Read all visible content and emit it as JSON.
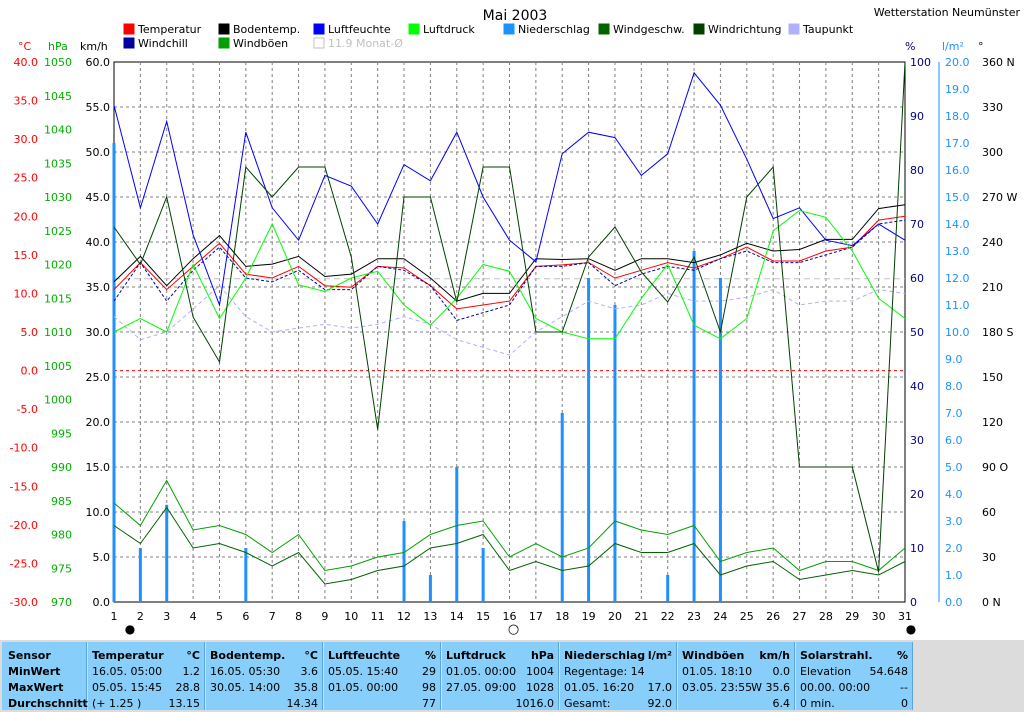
{
  "title": "Mai 2003",
  "station": "Wetterstation Neumünster",
  "colors": {
    "temp": "#ff0000",
    "windchill": "#0000a0",
    "boden": "#000000",
    "boeen": "#00a000",
    "luftfeuchte": "#0000ff",
    "luftdruck": "#00ff00",
    "niederschlag": "#1e90ff",
    "windgeschw": "#006400",
    "windrichtung": "#004000",
    "taupunkt": "#b0b0ff",
    "monat": "#c0c0c0",
    "zero_line": "#ff0000",
    "axis_celsius": "#ff0000",
    "axis_hpa": "#00b000",
    "axis_kmh": "#000000",
    "axis_percent": "#000080",
    "axis_rain": "#1e90ff",
    "axis_deg": "#000000"
  },
  "legend": [
    {
      "label": "Temperatur",
      "color": "#ff0000"
    },
    {
      "label": "Bodentemp.",
      "color": "#000000"
    },
    {
      "label": "Luftfeuchte",
      "color": "#0000ff"
    },
    {
      "label": "Luftdruck",
      "color": "#00ff00"
    },
    {
      "label": "Niederschlag",
      "color": "#1e90ff"
    },
    {
      "label": "Windgeschw.",
      "color": "#006400"
    },
    {
      "label": "Windrichtung",
      "color": "#004000"
    },
    {
      "label": "Taupunkt",
      "color": "#b0b0ff"
    },
    {
      "label": "Windchill",
      "color": "#0000a0"
    },
    {
      "label": "Windböen",
      "color": "#00a000"
    },
    {
      "label": "11.9 Monat-Ø",
      "color": "#ffffff"
    }
  ],
  "axis_units": {
    "celsius": "°C",
    "hpa": "hPa",
    "kmh": "km/h",
    "percent": "%",
    "rain": "l/m²",
    "deg": "°"
  },
  "chart_data": {
    "type": "line",
    "x": [
      1,
      2,
      3,
      4,
      5,
      6,
      7,
      8,
      9,
      10,
      11,
      12,
      13,
      14,
      15,
      16,
      17,
      18,
      19,
      20,
      21,
      22,
      23,
      24,
      25,
      26,
      27,
      28,
      29,
      30,
      31
    ],
    "axes": {
      "celsius": {
        "ylim": [
          -30,
          40
        ],
        "ticks": [
          "40.0",
          "35.0",
          "30.0",
          "25.0",
          "20.0",
          "15.0",
          "10.0",
          "5.0",
          "0.0",
          "-5.0",
          "-10.0",
          "-15.0",
          "-20.0",
          "-25.0",
          "-30.0"
        ]
      },
      "hpa": {
        "ylim": [
          970,
          1050
        ],
        "ticks": [
          "1050",
          "1045",
          "1040",
          "1035",
          "1030",
          "1025",
          "1020",
          "1015",
          "1010",
          "1005",
          "1000",
          "995",
          "990",
          "985",
          "980",
          "975",
          "970"
        ]
      },
      "kmh": {
        "ylim": [
          0,
          60
        ],
        "ticks": [
          "60.0",
          "55.0",
          "50.0",
          "45.0",
          "40.0",
          "35.0",
          "30.0",
          "25.0",
          "20.0",
          "15.0",
          "10.0",
          "5.0",
          "0.0"
        ]
      },
      "percent": {
        "ylim": [
          0,
          100
        ],
        "ticks": [
          "100",
          "90",
          "80",
          "70",
          "60",
          "50",
          "40",
          "30",
          "20",
          "10",
          "0"
        ]
      },
      "rain": {
        "ylim": [
          0,
          20
        ],
        "ticks": [
          "20.0",
          "19.0",
          "18.0",
          "17.0",
          "16.0",
          "15.0",
          "14.0",
          "13.0",
          "12.0",
          "11.0",
          "10.0",
          "9.0",
          "8.0",
          "7.0",
          "6.0",
          "5.0",
          "4.0",
          "3.0",
          "2.0",
          "1.0",
          "0.0"
        ]
      },
      "deg": {
        "ylim": [
          0,
          360
        ],
        "ticks": [
          "360 N",
          "330",
          "300",
          "270 W",
          "240",
          "210",
          "180 S",
          "150",
          "120",
          "90 O",
          "60",
          "30",
          "0 N"
        ]
      }
    },
    "series": [
      {
        "name": "Temperatur",
        "axis": "celsius",
        "values": [
          10.5,
          14,
          10.5,
          13.5,
          16.5,
          12.5,
          12,
          13.5,
          11,
          10.8,
          13.5,
          13.3,
          11,
          8,
          8.5,
          9,
          13.5,
          13.7,
          14,
          12,
          13,
          14,
          13.3,
          14.5,
          16,
          14.2,
          14.2,
          15.5,
          16,
          19.5,
          20
        ]
      },
      {
        "name": "Windchill",
        "axis": "celsius",
        "values": [
          9,
          14,
          9,
          13,
          16,
          12,
          11.5,
          13,
          10.5,
          10.5,
          13.5,
          13,
          11,
          6.5,
          7.5,
          8.5,
          13.5,
          13.5,
          14,
          11,
          12.5,
          13.5,
          13,
          14.5,
          15.5,
          14,
          14,
          15,
          16,
          19,
          19.5
        ]
      },
      {
        "name": "Bodentemp.",
        "axis": "celsius",
        "values": [
          11.5,
          14.8,
          11,
          14.5,
          17.5,
          13.5,
          13.8,
          14.8,
          12.2,
          12.5,
          14.5,
          14.5,
          12,
          9,
          10,
          10,
          14.5,
          14.4,
          14.5,
          13,
          14.5,
          14.5,
          14,
          15,
          16.5,
          15.5,
          15.7,
          17,
          17,
          21,
          21.5
        ]
      },
      {
        "name": "Taupunkt",
        "axis": "celsius",
        "values": [
          7,
          4,
          5,
          8,
          11,
          7,
          5,
          5.5,
          6,
          5.5,
          6,
          7,
          6,
          4,
          3,
          2,
          5,
          7,
          9,
          8,
          8.5,
          10,
          9,
          9,
          9.5,
          10.5,
          8.5,
          9,
          9,
          10.5,
          10
        ]
      },
      {
        "name": "Luftfeuchte",
        "axis": "percent",
        "values": [
          92,
          73,
          89,
          68,
          55,
          87,
          73,
          67,
          79,
          77,
          70,
          81,
          78,
          87,
          75,
          67,
          63,
          83,
          87,
          86,
          79,
          83,
          98,
          92,
          82,
          71,
          73,
          67,
          66,
          70,
          67
        ]
      },
      {
        "name": "Luftdruck",
        "axis": "hpa",
        "values": [
          1010,
          1012,
          1010,
          1020,
          1012,
          1018,
          1026,
          1017,
          1016,
          1018,
          1019,
          1014,
          1011,
          1015,
          1020,
          1019,
          1012,
          1010,
          1009,
          1009,
          1015,
          1020,
          1011,
          1009,
          1012,
          1025,
          1028,
          1027,
          1022,
          1015,
          1012
        ]
      },
      {
        "name": "Windgeschw.",
        "axis": "kmh",
        "values": [
          8.5,
          6.5,
          10.5,
          6,
          6.5,
          5.5,
          4,
          5.5,
          2,
          2.5,
          3.5,
          4,
          6,
          6.5,
          7.5,
          3.5,
          4.5,
          3.5,
          4,
          6.5,
          5.5,
          5.5,
          6.5,
          3,
          4,
          4.5,
          2.5,
          3,
          3.5,
          3,
          4.5
        ]
      },
      {
        "name": "Windböen",
        "axis": "kmh",
        "values": [
          11,
          8.5,
          13.5,
          8,
          8.5,
          7.5,
          5.5,
          7.5,
          3.5,
          4,
          5,
          5.5,
          7.5,
          8.5,
          9,
          5,
          6.5,
          5,
          6,
          9,
          8,
          7.5,
          8.5,
          4.5,
          5.5,
          6,
          3.5,
          4.5,
          4.5,
          3.5,
          6
        ]
      },
      {
        "name": "Windrichtung",
        "axis": "deg",
        "values": [
          250,
          225,
          270,
          190,
          160,
          290,
          270,
          290,
          290,
          230,
          115,
          270,
          270,
          200,
          290,
          290,
          180,
          180,
          230,
          250,
          220,
          200,
          230,
          180,
          270,
          290,
          90,
          90,
          90,
          20,
          360
        ]
      }
    ],
    "niederschlag": {
      "name": "Niederschlag",
      "axis": "rain",
      "values": [
        17,
        2,
        3.6,
        0,
        0,
        2,
        0,
        0,
        0,
        0,
        0,
        3,
        1,
        5,
        2,
        0,
        0,
        7,
        12,
        11,
        0,
        1,
        13,
        12,
        0,
        0,
        0,
        0,
        0,
        0,
        0
      ]
    },
    "monat_mittel": {
      "name": "11.9 Monat-Ø",
      "axis": "celsius",
      "value": 11.9
    },
    "moon_phases": {
      "full": [
        1,
        31
      ],
      "new": [
        16
      ],
      "markers": [
        "●",
        "○"
      ]
    }
  },
  "stats": {
    "sensor": {
      "header": "Sensor",
      "rows": [
        "MinWert",
        "MaxWert",
        "Durchschnitt"
      ]
    },
    "blocks": [
      {
        "title": "Temperatur",
        "unit": "°C",
        "rows": [
          [
            "16.05.  05:00",
            "1.2"
          ],
          [
            "05.05.  15:45",
            "28.8"
          ],
          [
            "(+ 1.25 )",
            "13.15"
          ]
        ]
      },
      {
        "title": "Bodentemp.",
        "unit": "°C",
        "rows": [
          [
            "16.05.  05:30",
            "3.6"
          ],
          [
            "30.05.  14:00",
            "35.8"
          ],
          [
            "",
            "14.34"
          ]
        ]
      },
      {
        "title": "Luftfeuchte",
        "unit": "%",
        "rows": [
          [
            "05.05.  15:40",
            "29"
          ],
          [
            "01.05.  00:00",
            "98"
          ],
          [
            "",
            "77"
          ]
        ]
      },
      {
        "title": "Luftdruck",
        "unit": "hPa",
        "rows": [
          [
            "01.05.  00:00",
            "1004"
          ],
          [
            "27.05.  09:00",
            "1028"
          ],
          [
            "",
            "1016.0"
          ]
        ]
      },
      {
        "title": "Niederschlag",
        "unit": "l/m²",
        "rows": [
          [
            "Regentage: 14",
            ""
          ],
          [
            "01.05.  16:20",
            "17.0"
          ],
          [
            "Gesamt:",
            "92.0"
          ]
        ]
      },
      {
        "title": "Windböen",
        "unit": "km/h",
        "rows": [
          [
            "01.05.  18:10",
            "0.0"
          ],
          [
            "03.05.  23:55",
            "W 35.6"
          ],
          [
            "",
            "6.4"
          ]
        ]
      },
      {
        "title": "Solarstrahl.",
        "unit": "%",
        "rows": [
          [
            "Elevation",
            "54.648"
          ],
          [
            "00.00.  00:00",
            "--"
          ],
          [
            "0 min.",
            "0"
          ]
        ]
      }
    ]
  }
}
